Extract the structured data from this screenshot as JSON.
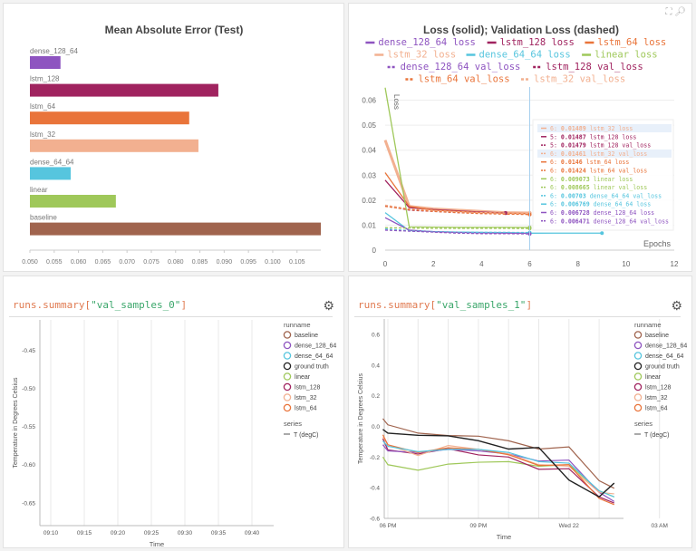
{
  "colors": {
    "dense_128_64": "#8e54c0",
    "lstm_128": "#a0235f",
    "lstm_64": "#e9743a",
    "lstm_32": "#f2b090",
    "dense_64_64": "#56c5de",
    "linear": "#9fc85a",
    "baseline": "#a0644e",
    "ground truth": "#222222"
  },
  "panel1": {
    "chart_data": {
      "type": "bar",
      "orientation": "horizontal",
      "title": "Mean Absolute Error (Test)",
      "categories": [
        "dense_128_64",
        "lstm_128",
        "lstm_64",
        "lstm_32",
        "dense_64_64",
        "linear",
        "baseline"
      ],
      "values": [
        0.0563,
        0.0888,
        0.0828,
        0.0847,
        0.0584,
        0.0677,
        0.1099
      ],
      "xlim": [
        0.05,
        0.1099
      ],
      "xticks": [
        "0.050",
        "0.055",
        "0.060",
        "0.065",
        "0.070",
        "0.075",
        "0.080",
        "0.085",
        "0.090",
        "0.095",
        "0.100",
        "0.105"
      ]
    }
  },
  "panel2": {
    "icons": [
      "fullscreen-icon",
      "search-icon"
    ],
    "chart_data": {
      "type": "line",
      "title": "Loss (solid); Validation Loss (dashed)",
      "xlabel": "Epochs",
      "ylabel": "Loss",
      "xlim": [
        0,
        12
      ],
      "ylim": [
        0,
        0.066
      ],
      "xticks": [
        "0",
        "2",
        "4",
        "6",
        "8",
        "10",
        "12"
      ],
      "yticks": [
        "0",
        "0.01",
        "0.02",
        "0.03",
        "0.04",
        "0.05",
        "0.06"
      ],
      "legend": [
        "dense_128_64 loss",
        "lstm_128 loss",
        "lstm_64 loss",
        "lstm_32 loss",
        "dense_64_64 loss",
        "linear loss",
        "dense_128_64 val_loss",
        "lstm_128 val_loss",
        "lstm_64 val_loss",
        "lstm_32 val_loss"
      ],
      "series": [
        {
          "name": "lstm_32 loss",
          "run": "lstm_32",
          "dashed": false,
          "values": [
            0.044,
            0.0175,
            0.0165,
            0.016,
            0.0155,
            0.015,
            0.01489
          ]
        },
        {
          "name": "lstm_128 loss",
          "run": "lstm_128",
          "dashed": false,
          "values": [
            0.028,
            0.017,
            0.0162,
            0.0157,
            0.0152,
            0.01487
          ]
        },
        {
          "name": "lstm_64 loss",
          "run": "lstm_64",
          "dashed": false,
          "values": [
            0.031,
            0.0175,
            0.016,
            0.0155,
            0.015,
            0.0148,
            0.0146
          ]
        },
        {
          "name": "linear loss",
          "run": "linear",
          "dashed": false,
          "values": [
            0.065,
            0.0093,
            0.0092,
            0.0091,
            0.0091,
            0.0091,
            0.009073
          ]
        },
        {
          "name": "dense_64_64 loss",
          "run": "dense_64_64",
          "dashed": false,
          "values": [
            0.015,
            0.0078,
            0.0074,
            0.0072,
            0.0071,
            0.007,
            0.006769,
            0.0068,
            0.0068,
            0.0068
          ]
        },
        {
          "name": "dense_128_64 loss",
          "run": "dense_128_64",
          "dashed": false,
          "values": [
            0.013,
            0.008,
            0.0074,
            0.0071,
            0.0069,
            0.0068,
            0.006728
          ]
        },
        {
          "name": "lstm_128 val_loss",
          "run": "lstm_128",
          "dashed": true,
          "values": [
            0.0178,
            0.016,
            0.0155,
            0.015,
            0.0148,
            0.01479
          ]
        },
        {
          "name": "lstm_32 val_loss",
          "run": "lstm_32",
          "dashed": true,
          "values": [
            0.018,
            0.0165,
            0.0158,
            0.0153,
            0.015,
            0.0148,
            0.01461
          ]
        },
        {
          "name": "lstm_64 val_loss",
          "run": "lstm_64",
          "dashed": true,
          "values": [
            0.0175,
            0.0162,
            0.0155,
            0.015,
            0.0146,
            0.0144,
            0.01424
          ]
        },
        {
          "name": "linear val_loss",
          "run": "linear",
          "dashed": true,
          "values": [
            0.009,
            0.0088,
            0.0087,
            0.0087,
            0.0087,
            0.0087,
            0.008665
          ]
        },
        {
          "name": "dense_64_64 val_loss",
          "run": "dense_64_64",
          "dashed": true,
          "values": [
            0.0085,
            0.0078,
            0.0074,
            0.0072,
            0.0071,
            0.0071,
            0.00703
          ]
        },
        {
          "name": "dense_128_64 val_loss",
          "run": "dense_128_64",
          "dashed": true,
          "values": [
            0.008,
            0.0076,
            0.0072,
            0.0068,
            0.0066,
            0.0066,
            0.006471
          ]
        }
      ],
      "hover_epoch": 6,
      "tooltip": [
        {
          "run": "lstm_32",
          "dashed": false,
          "step": "6:",
          "value": "0.01489",
          "label": "lstm_32 loss",
          "highlight": true
        },
        {
          "run": "lstm_128",
          "dashed": false,
          "step": "5:",
          "value": "0.01487",
          "label": "lstm_128 loss"
        },
        {
          "run": "lstm_128",
          "dashed": true,
          "step": "5:",
          "value": "0.01479",
          "label": "lstm_128 val_loss"
        },
        {
          "run": "lstm_32",
          "dashed": true,
          "step": "6:",
          "value": "0.01461",
          "label": "lstm_32 val_loss",
          "highlight": true
        },
        {
          "run": "lstm_64",
          "dashed": false,
          "step": "6:",
          "value": "0.0146",
          "label": "lstm_64 loss"
        },
        {
          "run": "lstm_64",
          "dashed": true,
          "step": "6:",
          "value": "0.01424",
          "label": "lstm_64 val_loss"
        },
        {
          "run": "linear",
          "dashed": false,
          "step": "6:",
          "value": "0.009073",
          "label": "linear loss"
        },
        {
          "run": "linear",
          "dashed": true,
          "step": "6:",
          "value": "0.008665",
          "label": "linear val_loss"
        },
        {
          "run": "dense_64_64",
          "dashed": true,
          "step": "6:",
          "value": "0.00703",
          "label": "dense_64_64 val_loss"
        },
        {
          "run": "dense_64_64",
          "dashed": false,
          "step": "6:",
          "value": "0.006769",
          "label": "dense_64_64 loss"
        },
        {
          "run": "dense_128_64",
          "dashed": false,
          "step": "6:",
          "value": "0.006728",
          "label": "dense_128_64 loss"
        },
        {
          "run": "dense_128_64",
          "dashed": true,
          "step": "6:",
          "value": "0.006471",
          "label": "dense_128_64 val_loss"
        }
      ]
    }
  },
  "panel3": {
    "title_prefix": "runs.summary[",
    "title_key": "\"val_samples_0\"",
    "title_suffix": "]",
    "chart_data": {
      "type": "line",
      "xlabel": "Time",
      "ylabel": "Temperature in Degrees Celsius",
      "ylim": [
        -0.68,
        -0.41
      ],
      "yticks": [
        "-0.45",
        "-0.50",
        "-0.55",
        "-0.60",
        "-0.65"
      ],
      "xticks": [
        "09:10",
        "09:15",
        "09:20",
        "09:25",
        "09:30",
        "09:35",
        "09:40"
      ],
      "series": []
    }
  },
  "panel4": {
    "title_prefix": "runs.summary[",
    "title_key": "\"val_samples_1\"",
    "title_suffix": "]",
    "chart_data": {
      "type": "line",
      "xlabel": "Time",
      "ylabel": "Temperature in Degrees Celsius",
      "ylim": [
        -0.6,
        0.7
      ],
      "yticks": [
        "0.6",
        "0.4",
        "0.2",
        "0.0",
        "-0.2",
        "-0.4",
        "-0.6"
      ],
      "xticks": [
        "06 PM",
        "09 PM",
        "Wed 22",
        "03 AM"
      ],
      "x": [
        "17:50",
        "18:00",
        "19:00",
        "20:00",
        "21:00",
        "22:00",
        "23:00",
        "00:00",
        "01:00",
        "01:30"
      ],
      "series": [
        {
          "name": "baseline",
          "values": [
            0.05,
            0.01,
            -0.044,
            -0.06,
            -0.064,
            -0.094,
            -0.148,
            -0.134,
            -0.354,
            -0.404
          ]
        },
        {
          "name": "linear",
          "values": [
            -0.2,
            -0.25,
            -0.286,
            -0.246,
            -0.234,
            -0.23,
            -0.26,
            -0.25,
            -0.42,
            -0.46
          ]
        },
        {
          "name": "lstm_128",
          "values": [
            -0.08,
            -0.154,
            -0.18,
            -0.146,
            -0.186,
            -0.2,
            -0.28,
            -0.276,
            -0.46,
            -0.5
          ]
        },
        {
          "name": "dense_128_64",
          "values": [
            -0.12,
            -0.16,
            -0.17,
            -0.15,
            -0.16,
            -0.18,
            -0.226,
            -0.22,
            -0.43,
            -0.49
          ]
        },
        {
          "name": "lstm_32",
          "values": [
            -0.07,
            -0.12,
            -0.19,
            -0.125,
            -0.15,
            -0.18,
            -0.25,
            -0.26,
            -0.43,
            -0.44
          ]
        },
        {
          "name": "lstm_64",
          "values": [
            -0.055,
            -0.12,
            -0.17,
            -0.14,
            -0.15,
            -0.185,
            -0.255,
            -0.25,
            -0.47,
            -0.51
          ]
        },
        {
          "name": "dense_64_64",
          "values": [
            -0.095,
            -0.13,
            -0.165,
            -0.15,
            -0.15,
            -0.17,
            -0.23,
            -0.24,
            -0.42,
            -0.46
          ]
        },
        {
          "name": "ground truth",
          "values": [
            -0.02,
            -0.044,
            -0.058,
            -0.062,
            -0.094,
            -0.148,
            -0.138,
            -0.35,
            -0.46,
            -0.37
          ]
        }
      ]
    }
  },
  "legend": {
    "runname_title": "runname",
    "runs": [
      "baseline",
      "dense_128_64",
      "dense_64_64",
      "ground truth",
      "linear",
      "lstm_128",
      "lstm_32",
      "lstm_64"
    ],
    "series_title": "series",
    "series_item": "T (degC)"
  }
}
